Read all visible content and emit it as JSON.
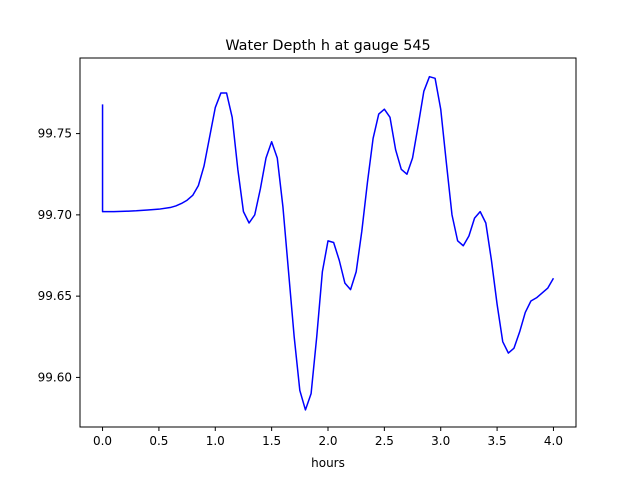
{
  "chart_data": {
    "type": "line",
    "title": "Water Depth h at gauge 545",
    "xlabel": "hours",
    "ylabel": "",
    "xlim": [
      -0.2,
      4.2
    ],
    "ylim": [
      99.5695,
      99.7965
    ],
    "xticks": [
      0.0,
      0.5,
      1.0,
      1.5,
      2.0,
      2.5,
      3.0,
      3.5,
      4.0
    ],
    "xtick_labels": [
      "0.0",
      "0.5",
      "1.0",
      "1.5",
      "2.0",
      "2.5",
      "3.0",
      "3.5",
      "4.0"
    ],
    "yticks": [
      99.6,
      99.65,
      99.7,
      99.75
    ],
    "ytick_labels": [
      "99.60",
      "99.65",
      "99.70",
      "99.75"
    ],
    "grid": false,
    "line_color": "#0000ff",
    "series": [
      {
        "x": [
          0.0,
          0.0,
          0.1,
          0.2,
          0.3,
          0.4,
          0.5,
          0.6,
          0.65,
          0.7,
          0.75,
          0.8,
          0.85,
          0.9,
          0.95,
          1.0,
          1.05,
          1.1,
          1.15,
          1.2,
          1.25,
          1.3,
          1.35,
          1.4,
          1.45,
          1.5,
          1.55,
          1.6,
          1.65,
          1.7,
          1.75,
          1.8,
          1.85,
          1.9,
          1.95,
          2.0,
          2.05,
          2.1,
          2.15,
          2.2,
          2.25,
          2.3,
          2.35,
          2.4,
          2.45,
          2.5,
          2.55,
          2.6,
          2.65,
          2.7,
          2.75,
          2.8,
          2.85,
          2.9,
          2.95,
          3.0,
          3.05,
          3.1,
          3.15,
          3.2,
          3.25,
          3.3,
          3.35,
          3.4,
          3.45,
          3.5,
          3.55,
          3.6,
          3.65,
          3.7,
          3.75,
          3.8,
          3.85,
          3.9,
          3.95,
          4.0
        ],
        "y": [
          99.768,
          99.702,
          99.702,
          99.7022,
          99.7025,
          99.703,
          99.7035,
          99.7045,
          99.7055,
          99.707,
          99.709,
          99.712,
          99.718,
          99.73,
          99.748,
          99.766,
          99.775,
          99.775,
          99.76,
          99.728,
          99.702,
          99.695,
          99.7,
          99.716,
          99.735,
          99.745,
          99.735,
          99.705,
          99.665,
          99.625,
          99.592,
          99.58,
          99.59,
          99.625,
          99.665,
          99.684,
          99.683,
          99.672,
          99.658,
          99.654,
          99.665,
          99.69,
          99.72,
          99.747,
          99.762,
          99.765,
          99.76,
          99.74,
          99.728,
          99.725,
          99.735,
          99.755,
          99.776,
          99.785,
          99.784,
          99.765,
          99.732,
          99.7,
          99.684,
          99.681,
          99.687,
          99.698,
          99.702,
          99.695,
          99.672,
          99.645,
          99.622,
          99.615,
          99.618,
          99.628,
          99.64,
          99.647,
          99.649,
          99.652,
          99.655,
          99.661
        ]
      }
    ]
  }
}
